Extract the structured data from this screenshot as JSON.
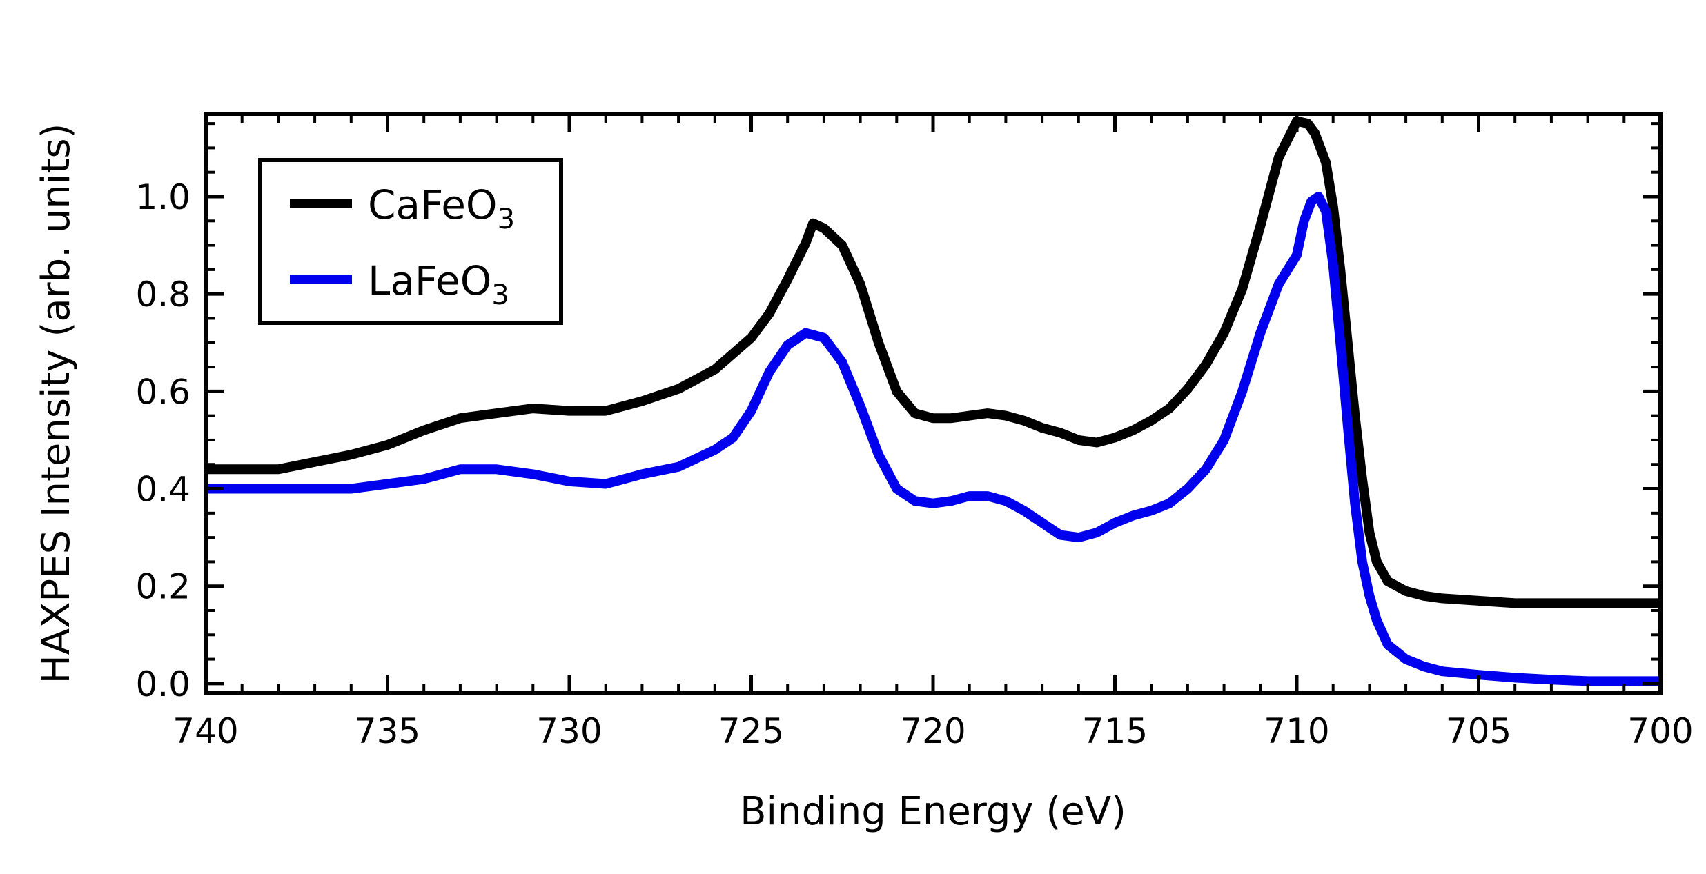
{
  "chart_data": {
    "type": "line",
    "title": "",
    "xlabel": "Binding Energy (eV)",
    "ylabel": "HAXPES Intensity (arb. units)",
    "xlim": [
      740,
      700
    ],
    "ylim": [
      -0.02,
      1.17
    ],
    "x_ticks": [
      740,
      735,
      730,
      725,
      720,
      715,
      710,
      705,
      700
    ],
    "x_tick_labels": [
      "740",
      "735",
      "730",
      "725",
      "720",
      "715",
      "710",
      "705",
      "700"
    ],
    "y_ticks": [
      0.0,
      0.2,
      0.4,
      0.6,
      0.8,
      1.0
    ],
    "y_tick_labels": [
      "0.0",
      "0.2",
      "0.4",
      "0.6",
      "0.8",
      "1.0"
    ],
    "grid": false,
    "legend_position": "top-left",
    "series": [
      {
        "name": "CaFeO",
        "subscript": "3",
        "color": "#000000",
        "x": [
          740,
          738,
          736,
          735,
          734,
          733,
          732,
          731,
          730,
          729,
          728,
          727,
          726,
          725,
          724.5,
          724,
          723.5,
          723.3,
          723,
          722.5,
          722,
          721.5,
          721,
          720.5,
          720,
          719.5,
          719,
          718.5,
          718,
          717.5,
          717,
          716.5,
          716,
          715.5,
          715,
          714.5,
          714,
          713.5,
          713,
          712.5,
          712,
          711.5,
          711,
          710.5,
          710,
          709.7,
          709.5,
          709.2,
          709,
          708.8,
          708.6,
          708.4,
          708.2,
          708,
          707.8,
          707.5,
          707,
          706.5,
          706,
          705,
          704,
          703,
          702,
          701,
          700
        ],
        "values": [
          0.44,
          0.44,
          0.47,
          0.49,
          0.52,
          0.545,
          0.555,
          0.565,
          0.56,
          0.56,
          0.58,
          0.605,
          0.645,
          0.71,
          0.76,
          0.83,
          0.905,
          0.945,
          0.935,
          0.9,
          0.82,
          0.7,
          0.6,
          0.555,
          0.545,
          0.545,
          0.55,
          0.555,
          0.55,
          0.54,
          0.525,
          0.515,
          0.5,
          0.495,
          0.505,
          0.52,
          0.54,
          0.565,
          0.605,
          0.655,
          0.72,
          0.81,
          0.94,
          1.08,
          1.155,
          1.15,
          1.13,
          1.07,
          0.98,
          0.85,
          0.7,
          0.55,
          0.42,
          0.31,
          0.25,
          0.21,
          0.19,
          0.18,
          0.175,
          0.17,
          0.165,
          0.165,
          0.165,
          0.165,
          0.165
        ]
      },
      {
        "name": "LaFeO",
        "subscript": "3",
        "color": "#0000ee",
        "x": [
          740,
          738,
          736,
          735,
          734,
          733,
          732,
          731,
          730,
          729,
          728,
          727,
          726,
          725.5,
          725,
          724.5,
          724,
          723.5,
          723,
          722.5,
          722,
          721.5,
          721,
          720.5,
          720,
          719.5,
          719,
          718.5,
          718,
          717.5,
          717,
          716.5,
          716,
          715.5,
          715,
          714.5,
          714,
          713.5,
          713,
          712.5,
          712,
          711.5,
          711,
          710.5,
          710,
          709.8,
          709.6,
          709.4,
          709.2,
          709,
          708.8,
          708.6,
          708.4,
          708.2,
          708,
          707.8,
          707.5,
          707,
          706.5,
          706,
          705,
          704,
          703,
          702,
          701,
          700
        ],
        "values": [
          0.4,
          0.4,
          0.4,
          0.41,
          0.42,
          0.44,
          0.44,
          0.43,
          0.415,
          0.41,
          0.43,
          0.445,
          0.48,
          0.505,
          0.56,
          0.64,
          0.695,
          0.72,
          0.71,
          0.66,
          0.57,
          0.47,
          0.4,
          0.375,
          0.37,
          0.375,
          0.385,
          0.385,
          0.375,
          0.355,
          0.33,
          0.305,
          0.3,
          0.31,
          0.33,
          0.345,
          0.355,
          0.37,
          0.4,
          0.44,
          0.5,
          0.6,
          0.72,
          0.82,
          0.88,
          0.95,
          0.99,
          1.0,
          0.97,
          0.86,
          0.7,
          0.53,
          0.37,
          0.25,
          0.18,
          0.13,
          0.08,
          0.05,
          0.035,
          0.025,
          0.018,
          0.012,
          0.008,
          0.005,
          0.005,
          0.005
        ]
      }
    ]
  }
}
